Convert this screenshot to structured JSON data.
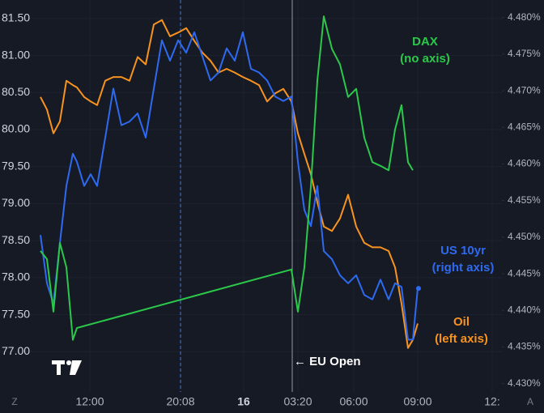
{
  "chart_data": {
    "type": "line",
    "xlim": [
      0,
      62
    ],
    "xticks": [
      {
        "value": 11.1,
        "label": "12:00"
      },
      {
        "value": 22.3,
        "label": "20:08"
      },
      {
        "value": 30.1,
        "label": "16"
      },
      {
        "value": 36.8,
        "label": "03:20"
      },
      {
        "value": 43.7,
        "label": "06:00"
      },
      {
        "value": 51.6,
        "label": "09:00"
      },
      {
        "value": 60.8,
        "label": "12:"
      }
    ],
    "ylim": [
      76.5,
      81.75
    ],
    "yticks": [
      {
        "value": 77.0,
        "label": "77.00"
      },
      {
        "value": 77.5,
        "label": "77.50"
      },
      {
        "value": 78.0,
        "label": "78.00"
      },
      {
        "value": 78.5,
        "label": "78.50"
      },
      {
        "value": 79.0,
        "label": "79.00"
      },
      {
        "value": 79.5,
        "label": "79.50"
      },
      {
        "value": 80.0,
        "label": "80.00"
      },
      {
        "value": 80.5,
        "label": "80.50"
      },
      {
        "value": 81.0,
        "label": "81.00"
      },
      {
        "value": 81.5,
        "label": "81.50"
      }
    ],
    "y2lim": [
      4.4293,
      4.4824
    ],
    "y2ticks": [
      {
        "value": 4.43,
        "label": "4.430%"
      },
      {
        "value": 4.435,
        "label": "4.435%"
      },
      {
        "value": 4.44,
        "label": "4.440%"
      },
      {
        "value": 4.445,
        "label": "4.445%"
      },
      {
        "value": 4.45,
        "label": "4.450%"
      },
      {
        "value": 4.455,
        "label": "4.455%"
      },
      {
        "value": 4.46,
        "label": "4.460%"
      },
      {
        "value": 4.465,
        "label": "4.465%"
      },
      {
        "value": 4.47,
        "label": "4.470%"
      },
      {
        "value": 4.475,
        "label": "4.475%"
      },
      {
        "value": 4.48,
        "label": "4.480%"
      }
    ],
    "grid": true,
    "series": [
      {
        "name": "Oil",
        "axis_note": "(left axis)",
        "color": "#f7931e",
        "axis": "y",
        "x": [
          5.0,
          5.8,
          6.6,
          7.4,
          8.2,
          9.0,
          9.5,
          10.4,
          11.2,
          12,
          13,
          14,
          15,
          16,
          17,
          18,
          19,
          20,
          21,
          22,
          23,
          24,
          25,
          26,
          27,
          28,
          29,
          30,
          31,
          32,
          33,
          34,
          35,
          36,
          36.8,
          37.6,
          38.4,
          39.2,
          40,
          41,
          42,
          43,
          44,
          45,
          46,
          47,
          48,
          48.8,
          49.6,
          50.4,
          51,
          51.6
        ],
        "values": [
          80.44,
          80.27,
          79.95,
          80.11,
          80.66,
          80.6,
          80.57,
          80.44,
          80.38,
          80.33,
          80.66,
          80.71,
          80.71,
          80.66,
          80.98,
          80.88,
          81.42,
          81.48,
          81.26,
          81.31,
          81.37,
          81.2,
          81.04,
          80.93,
          80.77,
          80.82,
          80.77,
          80.71,
          80.66,
          80.6,
          80.38,
          80.49,
          80.55,
          80.38,
          79.95,
          79.67,
          79.4,
          79.02,
          78.69,
          78.63,
          78.8,
          79.12,
          78.69,
          78.47,
          78.41,
          78.41,
          78.36,
          78.14,
          77.65,
          77.05,
          77.16,
          77.38
        ]
      },
      {
        "name": "US 10yr",
        "axis_note": "(right axis)",
        "color": "#2e6af0",
        "axis": "y2",
        "x": [
          5.0,
          5.8,
          6.6,
          7.4,
          8.2,
          9.0,
          9.5,
          10.4,
          11.2,
          12,
          13,
          14,
          15,
          16,
          17,
          18,
          19,
          20,
          21,
          22,
          23,
          24,
          25,
          26,
          27,
          28,
          29,
          30,
          31,
          32,
          33,
          34,
          35,
          36,
          36.8,
          37.6,
          38.4,
          39.2,
          40,
          41,
          42,
          43,
          44,
          45,
          46,
          47,
          48,
          48.8,
          49.6,
          50.4,
          51,
          51.6
        ],
        "values": [
          4.4503,
          4.4437,
          4.4409,
          4.4492,
          4.457,
          4.4614,
          4.4603,
          4.457,
          4.4586,
          4.457,
          4.4636,
          4.4703,
          4.4653,
          4.4658,
          4.4669,
          4.4636,
          4.4703,
          4.4769,
          4.4741,
          4.4769,
          4.4752,
          4.478,
          4.4747,
          4.4714,
          4.4725,
          4.4758,
          4.4741,
          4.478,
          4.473,
          4.4725,
          4.4714,
          4.4692,
          4.4686,
          4.4692,
          4.4603,
          4.4537,
          4.4515,
          4.457,
          4.4481,
          4.447,
          4.4448,
          4.4437,
          4.4448,
          4.4421,
          4.4415,
          4.4442,
          4.4415,
          4.4437,
          4.4432,
          4.436,
          4.436,
          4.443
        ]
      },
      {
        "name": "DAX",
        "axis_note": "(no axis)",
        "color": "#2bc84a",
        "axis": "y",
        "x": [
          5.0,
          5.8,
          6.6,
          7.4,
          8.2,
          9.0,
          9.5,
          36,
          36.8,
          37.6,
          38.4,
          39.2,
          40,
          41,
          42,
          43,
          44,
          45,
          46,
          47,
          48,
          48.8,
          49.6,
          50.4,
          51
        ],
        "values": [
          78.36,
          78.25,
          77.54,
          78.47,
          78.14,
          77.16,
          77.32,
          78.11,
          77.54,
          78.14,
          79.23,
          80.66,
          81.53,
          81.09,
          80.88,
          80.44,
          80.55,
          79.89,
          79.56,
          79.51,
          79.45,
          80.0,
          80.33,
          79.56,
          79.45
        ]
      }
    ],
    "annotations": [
      {
        "text": "← EU Open",
        "x": 36.1
      }
    ],
    "scale_buttons": [
      "Z",
      "A"
    ]
  }
}
